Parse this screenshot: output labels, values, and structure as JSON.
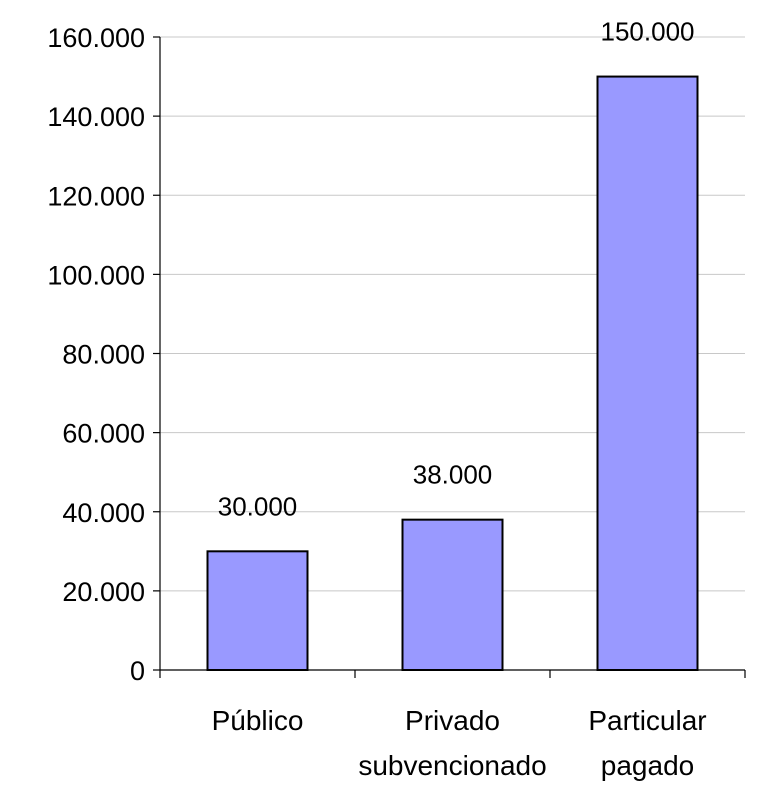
{
  "chart_data": {
    "type": "bar",
    "categories": [
      [
        "Público"
      ],
      [
        "Privado",
        "subvencionado"
      ],
      [
        "Particular",
        "pagado"
      ]
    ],
    "values": [
      30000,
      38000,
      150000
    ],
    "value_labels": [
      "30.000",
      "38.000",
      "150.000"
    ],
    "ylim": [
      0,
      160000
    ],
    "yticks": [
      0,
      20000,
      40000,
      60000,
      80000,
      100000,
      120000,
      140000,
      160000
    ],
    "ytick_labels": [
      "0",
      "20.000",
      "40.000",
      "60.000",
      "80.000",
      "100.000",
      "120.000",
      "140.000",
      "160.000"
    ],
    "grid": true,
    "bar_color": "#9999ff",
    "bar_edge_color": "#000000",
    "title": "",
    "xlabel": "",
    "ylabel": ""
  }
}
